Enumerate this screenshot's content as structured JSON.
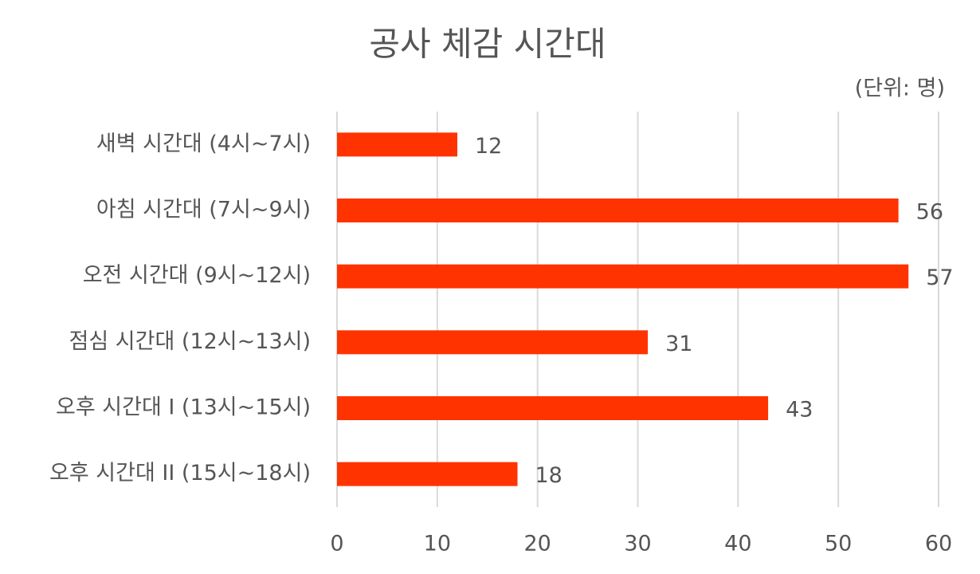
{
  "chart_data": {
    "type": "bar",
    "orientation": "horizontal",
    "title": "공사 체감 시간대",
    "unit_label": "(단위: 명)",
    "categories": [
      "새벽 시간대 (4시~7시)",
      "아침 시간대 (7시~9시)",
      "오전 시간대 (9시~12시)",
      "점심 시간대 (12시~13시)",
      "오후 시간대 I (13시~15시)",
      "오후 시간대 II (15시~18시)"
    ],
    "values": [
      12,
      56,
      57,
      31,
      43,
      18
    ],
    "color": "#ff3300",
    "xlim": [
      0,
      60
    ],
    "xticks": [
      0,
      10,
      20,
      30,
      40,
      50,
      60
    ],
    "grid": true
  }
}
